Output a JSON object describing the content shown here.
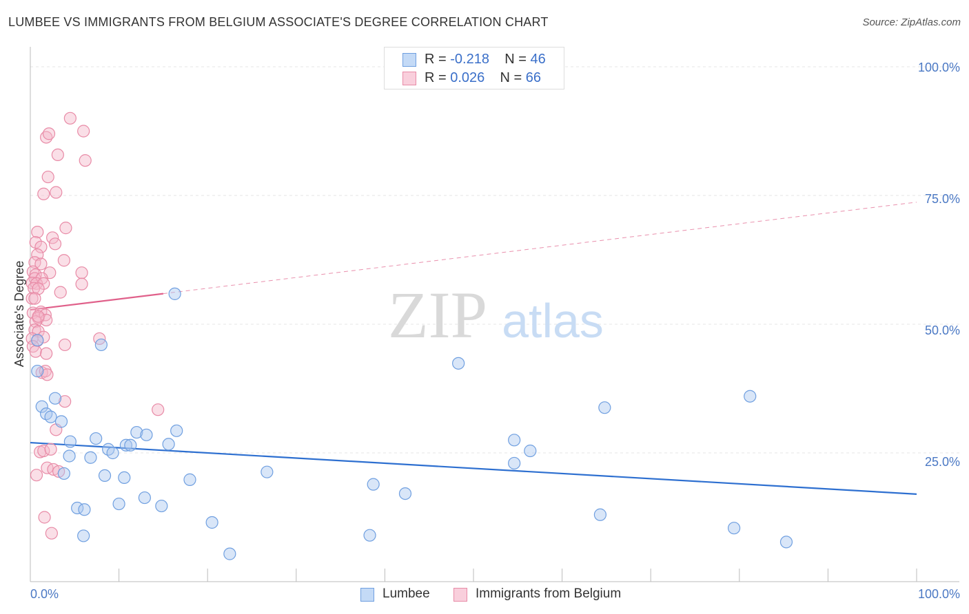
{
  "header": {
    "title": "LUMBEE VS IMMIGRANTS FROM BELGIUM ASSOCIATE'S DEGREE CORRELATION CHART",
    "source": "Source: ZipAtlas.com"
  },
  "watermark": {
    "zip": "ZIP",
    "atlas": "atlas"
  },
  "legend": {
    "rows": [
      {
        "r_label": "R =",
        "r_value": "-0.218",
        "n_label": "N =",
        "n_value": "46"
      },
      {
        "r_label": "R =",
        "r_value": "0.026",
        "n_label": "N =",
        "n_value": "66"
      }
    ],
    "bottom": [
      "Lumbee",
      "Immigrants from Belgium"
    ]
  },
  "colors": {
    "blue_fill": "#aac8f0",
    "blue_stroke": "#6f9fe0",
    "blue_line": "#2d6fd0",
    "pink_fill": "#f5b8ca",
    "pink_stroke": "#e88aa6",
    "pink_line": "#e0608a"
  },
  "chart_data": {
    "type": "scatter",
    "title": "LUMBEE VS IMMIGRANTS FROM BELGIUM ASSOCIATE'S DEGREE CORRELATION CHART",
    "xlabel": "",
    "ylabel": "Associate's Degree",
    "xlim": [
      0,
      100
    ],
    "ylim": [
      0,
      100
    ],
    "x_tick_labels": [
      "0.0%",
      "100.0%"
    ],
    "y_tick_labels": [
      "100.0%",
      "75.0%",
      "50.0%",
      "25.0%"
    ],
    "y_ticks": [
      100,
      75,
      50,
      25
    ],
    "series": [
      {
        "name": "Lumbee",
        "r": -0.218,
        "n": 46,
        "trend": {
          "x": [
            0,
            100
          ],
          "y": [
            27.0,
            17.0
          ],
          "dashed_from": null
        },
        "points": [
          [
            16.3,
            55.9
          ],
          [
            8.0,
            46.0
          ],
          [
            0.8,
            46.9
          ],
          [
            0.8,
            40.9
          ],
          [
            1.3,
            34.0
          ],
          [
            2.8,
            35.6
          ],
          [
            1.8,
            32.6
          ],
          [
            2.3,
            32.0
          ],
          [
            3.5,
            31.1
          ],
          [
            4.5,
            27.2
          ],
          [
            7.4,
            27.8
          ],
          [
            12.0,
            29.0
          ],
          [
            13.1,
            28.5
          ],
          [
            16.5,
            29.3
          ],
          [
            8.8,
            25.7
          ],
          [
            9.3,
            25.0
          ],
          [
            10.8,
            26.5
          ],
          [
            11.3,
            26.5
          ],
          [
            15.6,
            26.7
          ],
          [
            4.4,
            24.4
          ],
          [
            6.8,
            24.1
          ],
          [
            3.8,
            21.0
          ],
          [
            8.4,
            20.6
          ],
          [
            10.6,
            20.2
          ],
          [
            18.0,
            19.8
          ],
          [
            26.7,
            21.3
          ],
          [
            5.3,
            14.3
          ],
          [
            6.1,
            14.0
          ],
          [
            10.0,
            15.1
          ],
          [
            12.9,
            16.3
          ],
          [
            14.8,
            14.7
          ],
          [
            6.0,
            8.9
          ],
          [
            20.5,
            11.5
          ],
          [
            22.5,
            5.4
          ],
          [
            38.7,
            18.9
          ],
          [
            42.3,
            17.1
          ],
          [
            38.3,
            9.0
          ],
          [
            48.3,
            42.4
          ],
          [
            54.6,
            27.5
          ],
          [
            54.6,
            23.0
          ],
          [
            56.4,
            25.4
          ],
          [
            64.3,
            13.0
          ],
          [
            64.8,
            33.8
          ],
          [
            81.2,
            36.0
          ],
          [
            79.4,
            10.4
          ],
          [
            85.3,
            7.7
          ]
        ]
      },
      {
        "name": "Immigrants from Belgium",
        "r": 0.026,
        "n": 66,
        "trend": {
          "x": [
            0,
            100
          ],
          "y": [
            52.8,
            73.7
          ],
          "dashed_from": 15.0
        },
        "points": [
          [
            4.5,
            90.0
          ],
          [
            6.0,
            87.5
          ],
          [
            1.8,
            86.3
          ],
          [
            2.1,
            87.0
          ],
          [
            3.1,
            82.9
          ],
          [
            6.2,
            81.8
          ],
          [
            2.0,
            78.6
          ],
          [
            1.5,
            75.3
          ],
          [
            2.9,
            75.6
          ],
          [
            4.0,
            68.7
          ],
          [
            0.8,
            67.9
          ],
          [
            2.5,
            66.8
          ],
          [
            2.8,
            65.6
          ],
          [
            0.6,
            65.9
          ],
          [
            1.2,
            65.0
          ],
          [
            0.8,
            63.5
          ],
          [
            3.8,
            62.4
          ],
          [
            0.5,
            62.0
          ],
          [
            1.2,
            61.7
          ],
          [
            0.3,
            60.2
          ],
          [
            0.6,
            59.6
          ],
          [
            2.2,
            60.0
          ],
          [
            5.8,
            60.0
          ],
          [
            0.5,
            58.9
          ],
          [
            1.3,
            58.9
          ],
          [
            0.2,
            58.0
          ],
          [
            0.7,
            57.9
          ],
          [
            1.5,
            57.9
          ],
          [
            5.8,
            57.8
          ],
          [
            0.4,
            57.0
          ],
          [
            0.9,
            56.9
          ],
          [
            3.4,
            56.2
          ],
          [
            0.2,
            55.0
          ],
          [
            0.5,
            55.0
          ],
          [
            0.3,
            52.2
          ],
          [
            1.2,
            52.4
          ],
          [
            0.9,
            51.2
          ],
          [
            1.7,
            51.8
          ],
          [
            1.8,
            50.8
          ],
          [
            0.6,
            50.5
          ],
          [
            0.5,
            48.9
          ],
          [
            0.9,
            48.6
          ],
          [
            1.5,
            47.5
          ],
          [
            0.2,
            47.2
          ],
          [
            0.8,
            46.8
          ],
          [
            7.8,
            47.2
          ],
          [
            0.3,
            45.7
          ],
          [
            3.9,
            46.0
          ],
          [
            0.6,
            44.7
          ],
          [
            1.8,
            44.3
          ],
          [
            1.3,
            40.6
          ],
          [
            1.7,
            40.9
          ],
          [
            1.9,
            40.2
          ],
          [
            3.9,
            35.0
          ],
          [
            14.4,
            33.4
          ],
          [
            2.9,
            29.5
          ],
          [
            1.1,
            25.2
          ],
          [
            1.5,
            25.4
          ],
          [
            2.3,
            25.7
          ],
          [
            1.9,
            22.1
          ],
          [
            2.6,
            21.8
          ],
          [
            3.2,
            21.4
          ],
          [
            0.7,
            20.7
          ],
          [
            1.6,
            12.5
          ],
          [
            2.4,
            9.4
          ],
          [
            0.9,
            51.5
          ]
        ]
      }
    ]
  }
}
